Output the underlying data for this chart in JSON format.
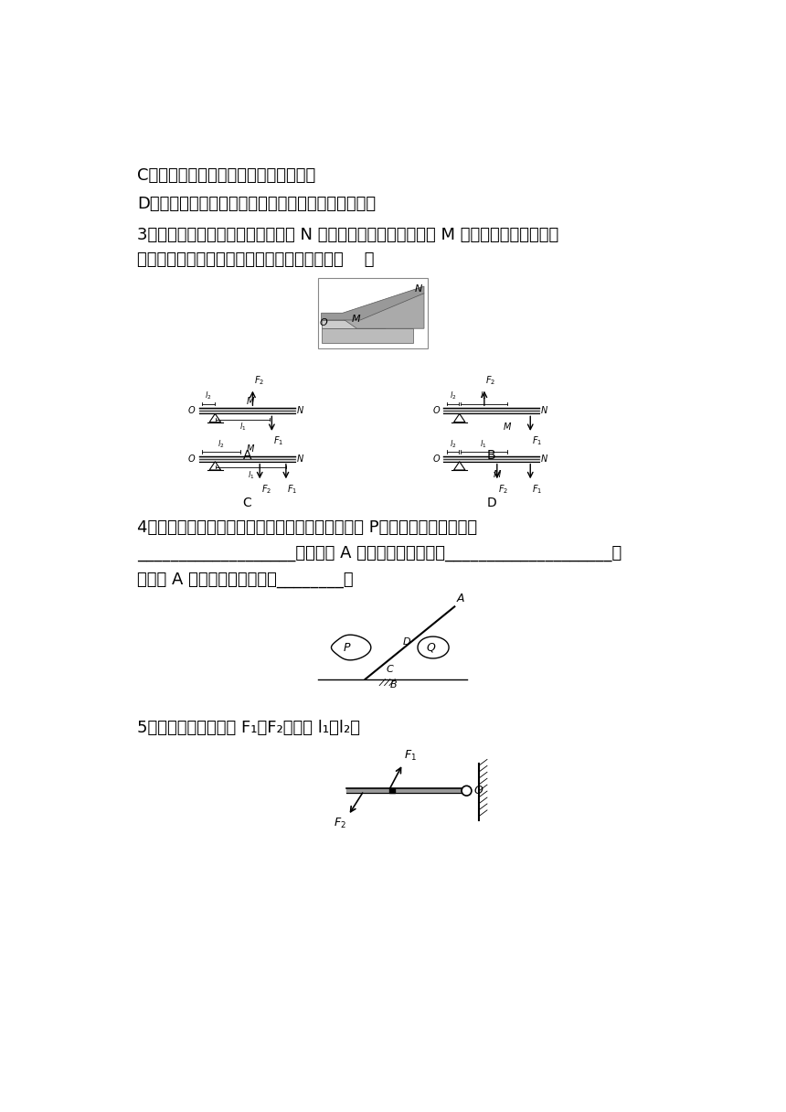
{
  "background_color": "#ffffff",
  "text_C": "C．杠杆的长度等于动力臂和阻力臂之和",
  "text_D": "D．支点可以在杠杆的端点，也可以在力的作用线之间",
  "text_3a": "3．如所示，小明在按压式订书机的 N 点施加压力，将订书针钉入 M 点下方的纸张中，中能",
  "text_3b": "正确表示他使用该订书机时的杠杆示意图的是（    ）",
  "text_4a": "4．如所示，用一根自重可忽略不计的撬棒撬动石块 P，阻碍杠杆转动的力是",
  "text_4b": "___________________。如果在 A 端向下用力，支点是____________________；",
  "text_4c": "如果在 A 端向上用力，支点是________。",
  "text_5": "5．画出中杠杆上的力 F₁、F₂的力臂 l₁、l₂。"
}
